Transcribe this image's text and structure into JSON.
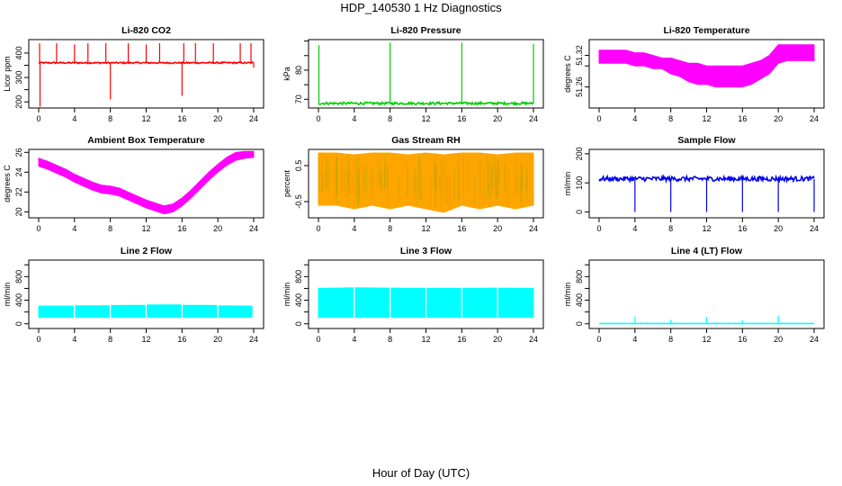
{
  "title": "HDP_140530  1 Hz Diagnostics",
  "xlabel": "Hour of Day (UTC)",
  "chart_data": [
    {
      "type": "line",
      "title": "Li-820 CO2",
      "ylabel": "Licor ppm",
      "color": "#ff0000",
      "xlim": [
        0,
        24
      ],
      "ylim": [
        175,
        455
      ],
      "xticks": [
        0,
        4,
        8,
        12,
        16,
        20,
        24
      ],
      "yticks": [
        200,
        250,
        300,
        350,
        400
      ],
      "ytick_labels": [
        "200",
        "",
        "300",
        "",
        "400"
      ],
      "baseline": 360,
      "band": 3,
      "spikes": [
        {
          "x": 0.1,
          "y": 440
        },
        {
          "x": 0.15,
          "y": 180
        },
        {
          "x": 2.0,
          "y": 440
        },
        {
          "x": 4.0,
          "y": 435
        },
        {
          "x": 5.5,
          "y": 440
        },
        {
          "x": 7.5,
          "y": 440
        },
        {
          "x": 8.0,
          "y": 210
        },
        {
          "x": 10.0,
          "y": 440
        },
        {
          "x": 12.0,
          "y": 435
        },
        {
          "x": 13.5,
          "y": 440
        },
        {
          "x": 16.0,
          "y": 225
        },
        {
          "x": 16.2,
          "y": 440
        },
        {
          "x": 17.5,
          "y": 440
        },
        {
          "x": 19.5,
          "y": 440
        },
        {
          "x": 22.5,
          "y": 440
        },
        {
          "x": 23.7,
          "y": 440
        },
        {
          "x": 24.0,
          "y": 340
        }
      ]
    },
    {
      "type": "line",
      "title": "Li-820 Pressure",
      "ylabel": "kPa",
      "color": "#00cc00",
      "xlim": [
        0,
        24
      ],
      "ylim": [
        67.0,
        90.5
      ],
      "xticks": [
        0,
        4,
        8,
        12,
        16,
        20,
        24
      ],
      "yticks": [
        70,
        75,
        80,
        85,
        90
      ],
      "ytick_labels": [
        "70",
        "",
        "80",
        "",
        ""
      ],
      "baseline": 68.6,
      "band": 0.4,
      "spikes": [
        {
          "x": 0.05,
          "y": 88.5
        },
        {
          "x": 8.0,
          "y": 89.5
        },
        {
          "x": 16.0,
          "y": 89.5
        },
        {
          "x": 24.0,
          "y": 89.0
        }
      ]
    },
    {
      "type": "area",
      "title": "Li-820 Temperature",
      "ylabel": "degrees C",
      "color": "#ff00ff",
      "xlim": [
        0,
        24
      ],
      "ylim": [
        51.22,
        51.35
      ],
      "xticks": [
        0,
        4,
        8,
        12,
        16,
        20,
        24
      ],
      "yticks": [
        51.26,
        51.3,
        51.32
      ],
      "ytick_labels": [
        "51.26",
        "",
        "51.32"
      ],
      "x": [
        0,
        1,
        2,
        3,
        4,
        5,
        6,
        7,
        8,
        9,
        10,
        11,
        12,
        13,
        14,
        15,
        16,
        17,
        18,
        19,
        20,
        21,
        22,
        23,
        24
      ],
      "lower": [
        51.305,
        51.305,
        51.305,
        51.305,
        51.3,
        51.3,
        51.295,
        51.295,
        51.285,
        51.28,
        51.27,
        51.265,
        51.265,
        51.26,
        51.26,
        51.26,
        51.26,
        51.265,
        51.275,
        51.285,
        51.305,
        51.31,
        51.31,
        51.31,
        51.31
      ],
      "upper": [
        51.33,
        51.33,
        51.33,
        51.33,
        51.325,
        51.325,
        51.32,
        51.315,
        51.315,
        51.31,
        51.305,
        51.305,
        51.3,
        51.3,
        51.3,
        51.3,
        51.3,
        51.305,
        51.31,
        51.32,
        51.34,
        51.34,
        51.34,
        51.34,
        51.34
      ]
    },
    {
      "type": "area",
      "title": "Ambient Box Temperature",
      "ylabel": "degrees C",
      "color": "#ff00ff",
      "xlim": [
        0,
        24
      ],
      "ylim": [
        19.4,
        26.3
      ],
      "xticks": [
        0,
        4,
        8,
        12,
        16,
        20,
        24
      ],
      "yticks": [
        20,
        22,
        24,
        26
      ],
      "ytick_labels": [
        "20",
        "22",
        "24",
        "26"
      ],
      "x": [
        0,
        1,
        2,
        3,
        4,
        5,
        6,
        7,
        8,
        9,
        10,
        11,
        12,
        13,
        14,
        15,
        16,
        17,
        18,
        19,
        20,
        21,
        22,
        23,
        24
      ],
      "lower": [
        24.6,
        24.3,
        23.9,
        23.5,
        23.0,
        22.6,
        22.2,
        21.9,
        21.8,
        21.6,
        21.2,
        20.8,
        20.4,
        20.1,
        19.8,
        20.0,
        20.6,
        21.4,
        22.3,
        23.2,
        24.0,
        24.7,
        25.2,
        25.4,
        25.5
      ],
      "upper": [
        25.4,
        25.1,
        24.7,
        24.3,
        23.8,
        23.4,
        23.0,
        22.7,
        22.6,
        22.4,
        22.0,
        21.6,
        21.2,
        20.9,
        20.6,
        20.8,
        21.4,
        22.2,
        23.1,
        24.0,
        24.8,
        25.5,
        26.0,
        26.1,
        26.1
      ]
    },
    {
      "type": "area",
      "title": "Gas Stream RH",
      "ylabel": "percent",
      "color": "#ffa500",
      "color2": "#a0a000",
      "xlim": [
        0,
        24
      ],
      "ylim": [
        -0.95,
        0.95
      ],
      "xticks": [
        0,
        4,
        8,
        12,
        16,
        20,
        24
      ],
      "yticks": [
        -0.5,
        0.5
      ],
      "ytick_labels": [
        "-0.5",
        "0.5"
      ],
      "x": [
        0,
        2,
        4,
        6,
        8,
        10,
        12,
        14,
        16,
        18,
        20,
        22,
        24
      ],
      "lower": [
        -0.6,
        -0.6,
        -0.7,
        -0.6,
        -0.7,
        -0.6,
        -0.7,
        -0.8,
        -0.6,
        -0.7,
        -0.6,
        -0.7,
        -0.6
      ],
      "upper": [
        0.85,
        0.85,
        0.8,
        0.85,
        0.85,
        0.8,
        0.85,
        0.8,
        0.85,
        0.85,
        0.8,
        0.85,
        0.85
      ]
    },
    {
      "type": "line",
      "title": "Sample Flow",
      "ylabel": "ml/min",
      "color": "#0000ee",
      "xlim": [
        0,
        24
      ],
      "ylim": [
        -20,
        215
      ],
      "xticks": [
        0,
        4,
        8,
        12,
        16,
        20,
        24
      ],
      "yticks": [
        0,
        100,
        200
      ],
      "ytick_labels": [
        "0",
        "100",
        "200"
      ],
      "baseline": 114,
      "band": 8,
      "spikes": [
        {
          "x": 4.0,
          "y": 0
        },
        {
          "x": 8.0,
          "y": 0
        },
        {
          "x": 12.0,
          "y": 0
        },
        {
          "x": 16.0,
          "y": 0
        },
        {
          "x": 20.0,
          "y": 0
        },
        {
          "x": 24.0,
          "y": 0
        }
      ]
    },
    {
      "type": "area",
      "title": "Line 2 Flow",
      "ylabel": "ml/min",
      "color": "#00ffff",
      "xlim": [
        0,
        24
      ],
      "ylim": [
        -80,
        1080
      ],
      "xticks": [
        0,
        4,
        8,
        12,
        16,
        20,
        24
      ],
      "yticks": [
        0,
        200,
        400,
        600,
        800,
        1000
      ],
      "ytick_labels": [
        "0",
        "",
        "400",
        "",
        "800",
        ""
      ],
      "x": [
        0,
        3.9,
        4.1,
        7.9,
        8.1,
        11.9,
        12.1,
        15.9,
        16.1,
        19.9,
        20.1,
        23.8
      ],
      "lower": [
        110,
        110,
        110,
        110,
        110,
        110,
        110,
        110,
        110,
        110,
        110,
        110
      ],
      "upper": [
        300,
        300,
        305,
        305,
        310,
        315,
        320,
        320,
        315,
        310,
        305,
        300
      ],
      "gaps": [
        4,
        8,
        12,
        16,
        20
      ]
    },
    {
      "type": "area",
      "title": "Line 3 Flow",
      "ylabel": "ml/min",
      "color": "#00ffff",
      "xlim": [
        0,
        24
      ],
      "ylim": [
        -80,
        1080
      ],
      "xticks": [
        0,
        4,
        8,
        12,
        16,
        20,
        24
      ],
      "yticks": [
        0,
        200,
        400,
        600,
        800,
        1000
      ],
      "ytick_labels": [
        "0",
        "",
        "400",
        "",
        "800",
        ""
      ],
      "x": [
        0,
        3.9,
        4.1,
        7.9,
        8.1,
        11.9,
        12.1,
        15.9,
        16.1,
        19.9,
        20.1,
        24
      ],
      "lower": [
        110,
        110,
        110,
        110,
        110,
        110,
        110,
        110,
        110,
        110,
        110,
        110
      ],
      "upper": [
        600,
        610,
        610,
        605,
        605,
        600,
        600,
        600,
        600,
        605,
        605,
        600
      ],
      "gaps": [
        4,
        8,
        12,
        16,
        20
      ]
    },
    {
      "type": "line",
      "title": "Line 4 (LT) Flow",
      "ylabel": "ml/min",
      "color": "#00ffff",
      "xlim": [
        0,
        24
      ],
      "ylim": [
        -80,
        1080
      ],
      "xticks": [
        0,
        4,
        8,
        12,
        16,
        20,
        24
      ],
      "yticks": [
        0,
        200,
        400,
        600,
        800,
        1000
      ],
      "ytick_labels": [
        "0",
        "",
        "400",
        "",
        "800",
        ""
      ],
      "baseline": 5,
      "band": 2,
      "spikes": [
        {
          "x": 4.0,
          "y": 120
        },
        {
          "x": 8.0,
          "y": 70
        },
        {
          "x": 12.0,
          "y": 120
        },
        {
          "x": 16.0,
          "y": 60
        },
        {
          "x": 20.0,
          "y": 130
        }
      ]
    }
  ]
}
